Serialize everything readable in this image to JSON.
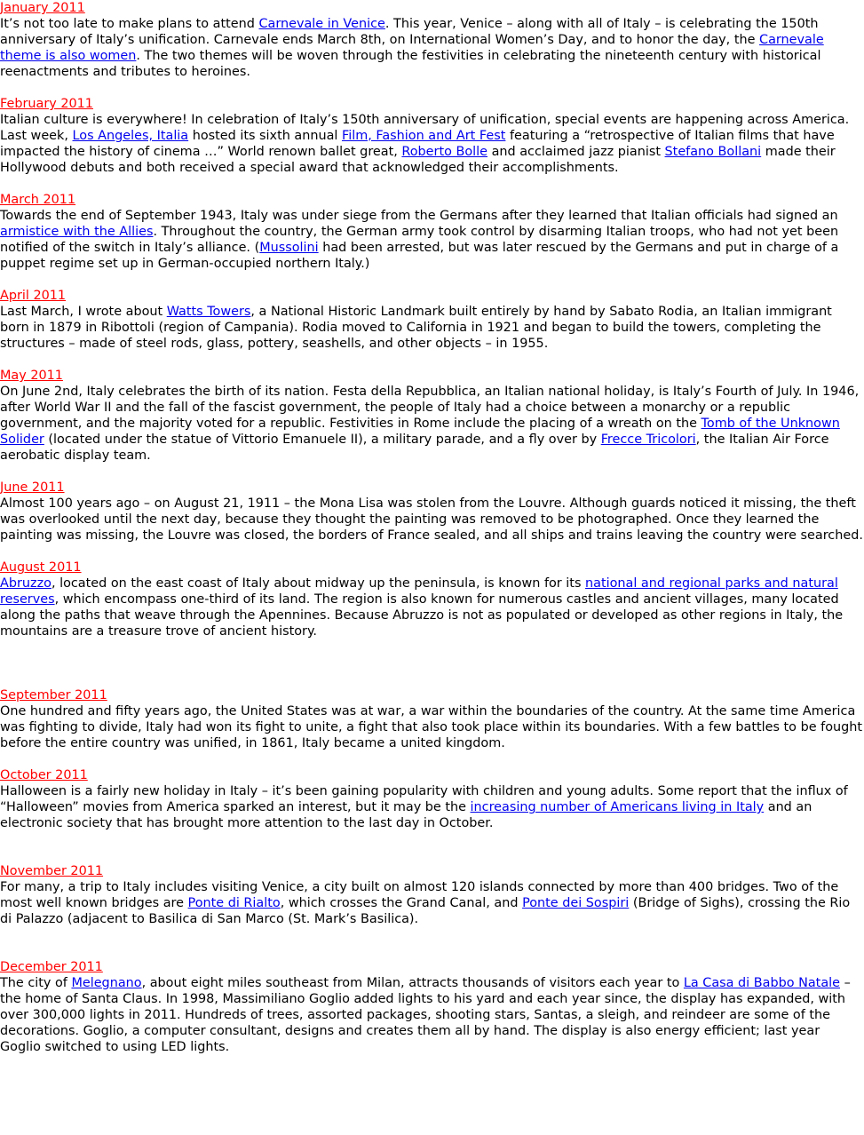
{
  "colors": {
    "heading": "#ff0000",
    "link": "#0000ee",
    "text": "#000000"
  },
  "entries": [
    {
      "heading": "January 2011",
      "paragraphs": [
        [
          {
            "t": " It’s not too late to make plans to attend "
          },
          {
            "t": "Carnevale in Venice",
            "link": true
          },
          {
            "t": ". This year, Venice – along with all of Italy – is celebrating the 150th anniversary of Italy’s unification. Carnevale ends March 8th, on International Women’s Day, and to honor the day, the "
          },
          {
            "t": "Carnevale theme is also women",
            "link": true
          },
          {
            "t": ". The two themes will be woven through the festivities in celebrating the nineteenth century with historical reenactments and tributes to heroines."
          }
        ]
      ]
    },
    {
      "heading": "February 2011",
      "paragraphs": [
        [
          {
            "t": " Italian culture is everywhere! In celebration of Italy’s 150th anniversary of unification, special events are happening across America."
          }
        ],
        [
          {
            "t": "Last week, "
          },
          {
            "t": "Los Angeles, Italia",
            "link": true
          },
          {
            "t": " hosted its sixth annual "
          },
          {
            "t": "Film, Fashion and Art Fest",
            "link": true
          },
          {
            "t": " featuring a “retrospective of Italian films that have impacted the history of cinema …” World renown ballet great, "
          },
          {
            "t": "Roberto Bolle",
            "link": true
          },
          {
            "t": " and acclaimed jazz pianist "
          },
          {
            "t": "Stefano Bollani",
            "link": true
          },
          {
            "t": " made their Hollywood debuts and both received a special award that acknowledged their accomplishments."
          }
        ]
      ]
    },
    {
      "heading": "March 2011",
      "paragraphs": [
        [
          {
            "t": " Towards the end of September 1943, Italy was under siege from the Germans after they learned that Italian officials had signed an "
          },
          {
            "t": "armistice with the Allies",
            "link": true
          },
          {
            "t": ". Throughout the country, the German army took control by disarming Italian troops, who had not yet been notified of the switch in Italy’s alliance. ("
          },
          {
            "t": "Mussolini",
            "link": true
          },
          {
            "t": " had been arrested, but was later rescued by the Germans and put in charge of a puppet regime set up in German-occupied northern Italy.)"
          }
        ]
      ]
    },
    {
      "heading": "April 2011",
      "paragraphs": [
        [
          {
            "t": "Last March, I wrote about "
          },
          {
            "t": "Watts Towers",
            "link": true
          },
          {
            "t": ", a National Historic Landmark built entirely by hand by Sabato Rodia, an Italian immigrant born in 1879 in Ribottoli (region of Campania). Rodia moved to California in 1921 and began to build the towers, completing the structures – made of steel rods, glass, pottery, seashells, and other objects – in 1955."
          }
        ]
      ]
    },
    {
      "heading": "May 2011",
      "paragraphs": [
        [
          {
            "t": " On June 2nd, Italy celebrates the birth of its nation. Festa della Repubblica, an Italian national holiday, is Italy’s Fourth of July. In 1946, after World War II and the fall of the fascist government, the people of Italy had a choice between a monarchy or a republic government, and the majority voted for a republic. Festivities in Rome include the placing of a wreath on the "
          },
          {
            "t": "Tomb of the Unknown Solider",
            "link": true
          },
          {
            "t": " (located under the statue of Vittorio Emanuele II), a military parade, and a fly over by "
          },
          {
            "t": "Frecce Tricolori",
            "link": true
          },
          {
            "t": ", the Italian Air Force aerobatic display team."
          }
        ]
      ]
    },
    {
      "heading": "June 2011",
      "paragraphs": [
        [
          {
            "t": " Almost 100 years ago – on August 21, 1911 – the Mona Lisa was stolen from the Louvre. Although guards noticed it missing, the theft was overlooked until the next day, because they thought the painting was removed to be photographed. Once they learned the painting was missing, the Louvre was closed, the borders of France sealed, and all ships and trains leaving the country were searched."
          }
        ]
      ]
    },
    {
      "heading": "August 2011",
      "paragraphs": [
        [
          {
            "t": " Abruzzo",
            "link": true
          },
          {
            "t": ", located on the east coast of Italy about midway up the peninsula, is known for its "
          },
          {
            "t": "national and regional parks and natural reserves",
            "link": true
          },
          {
            "t": ", which encompass one-third of its land. The region is also known for numerous castles and ancient villages, many located along the paths that weave through the Apennines. Because Abruzzo is not as populated or developed as other regions in Italy, the mountains are a treasure trove of ancient history."
          }
        ]
      ]
    },
    {
      "heading": "September 2011",
      "paragraphs": [
        [
          {
            "t": " One hundred and fifty years ago, the United States was at war, a war within the boundaries of the country. At the same time America was fighting to divide, Italy had won its fight to unite, a fight that also took place within its boundaries. With a few battles to be fought before the entire country was unified, in 1861, Italy became a united kingdom."
          }
        ]
      ]
    },
    {
      "heading": "October 2011",
      "paragraphs": [
        [
          {
            "t": " Halloween is a fairly new holiday in Italy – it’s been gaining popularity with children and young adults. Some report that the influx of “Halloween” movies from America sparked an interest, but it may be the "
          },
          {
            "t": "increasing number of Americans living in Italy",
            "link": true
          },
          {
            "t": " and an electronic society that has brought more attention to the last day in October."
          }
        ]
      ]
    },
    {
      "heading": "November 2011",
      "paragraphs": [
        [
          {
            "t": " For many, a trip to Italy includes visiting Venice, a city built on almost 120 islands connected by more than 400 bridges. Two of the most well known bridges are "
          },
          {
            "t": "Ponte di Rialto",
            "link": true
          },
          {
            "t": ", which crosses the Grand Canal, and "
          },
          {
            "t": "Ponte dei Sospiri",
            "link": true
          },
          {
            "t": " (Bridge of Sighs), crossing the Rio di Palazzo (adjacent to Basilica di San Marco (St. Mark’s Basilica)."
          }
        ]
      ]
    },
    {
      "heading": "December 2011",
      "paragraphs": [
        [
          {
            "t": " The city of "
          },
          {
            "t": "Melegnano",
            "link": true
          },
          {
            "t": ", about eight miles southeast from Milan, attracts thousands of visitors each year to "
          },
          {
            "t": "La Casa di Babbo Natale",
            "link": true
          },
          {
            "t": " – the home of Santa Claus. In 1998, Massimiliano Goglio added lights to his yard and each year since, the display has expanded, with over 300,000 lights in 2011. Hundreds of trees, assorted packages, shooting stars, Santas, a sleigh, and reindeer are some of the decorations. Goglio, a computer consultant, designs and creates them all by hand. The display is also energy efficient; last year Goglio switched to using LED lights."
          }
        ]
      ]
    }
  ]
}
